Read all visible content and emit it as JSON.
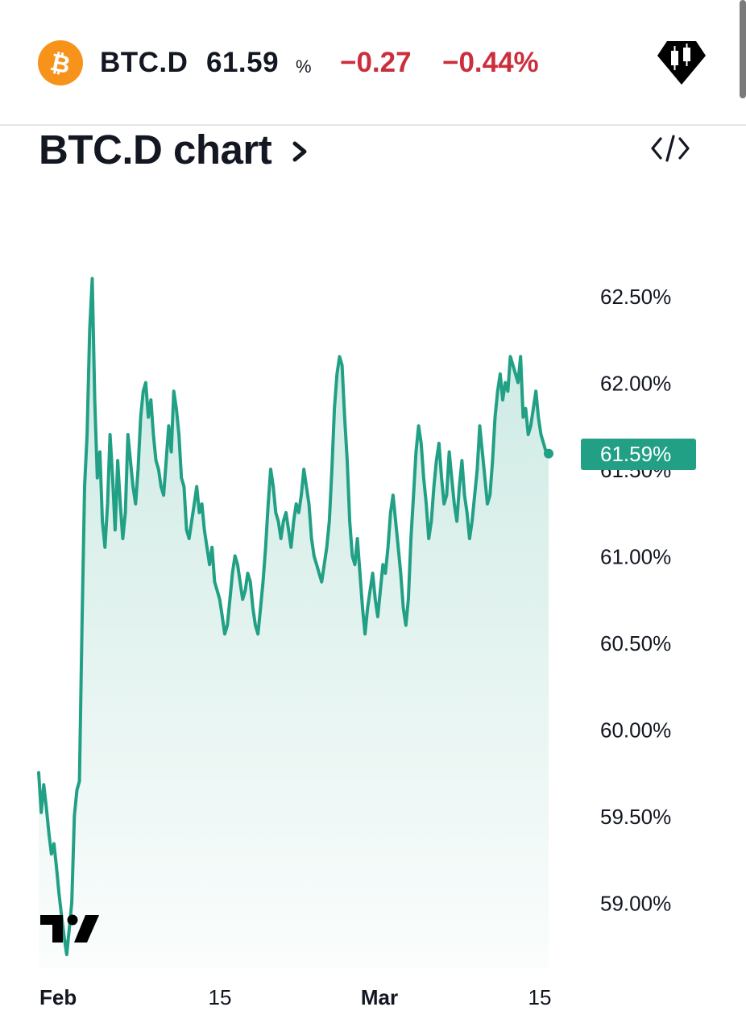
{
  "header": {
    "symbol": "BTC.D",
    "price": "61.59",
    "price_unit": "%",
    "change": "−0.27",
    "change_percent": "−0.44%",
    "icons": {
      "coin": "bitcoin-icon",
      "pro": "candlestick-badge-icon"
    }
  },
  "title": {
    "text": "BTC.D chart",
    "chevron": "chevron-right-icon",
    "embed": "code-embed-icon"
  },
  "colors": {
    "line": "#22a085",
    "fill": "#22a085",
    "negative": "#cc2f3c",
    "brand": "#f7931a",
    "text": "#131722"
  },
  "chart_data": {
    "type": "area",
    "series": [
      {
        "values": [
          59.75,
          59.52,
          59.68,
          59.55,
          59.4,
          59.28,
          59.34,
          59.2,
          59.05,
          58.92,
          58.8,
          58.7,
          58.85,
          59.0,
          59.5,
          59.65,
          59.7,
          60.6,
          61.4,
          61.7,
          62.3,
          62.6,
          61.9,
          61.45,
          61.6,
          61.2,
          61.05,
          61.3,
          61.7,
          61.45,
          61.15,
          61.55,
          61.3,
          61.1,
          61.25,
          61.7,
          61.55,
          61.4,
          61.3,
          61.5,
          61.8,
          61.95,
          62.0,
          61.8,
          61.9,
          61.7,
          61.55,
          61.5,
          61.4,
          61.35,
          61.55,
          61.75,
          61.6,
          61.95,
          61.85,
          61.7,
          61.45,
          61.4,
          61.15,
          61.1,
          61.2,
          61.3,
          61.4,
          61.25,
          61.3,
          61.15,
          61.05,
          60.95,
          61.05,
          60.85,
          60.8,
          60.75,
          60.65,
          60.55,
          60.6,
          60.75,
          60.9,
          61.0,
          60.95,
          60.85,
          60.75,
          60.8,
          60.9,
          60.85,
          60.7,
          60.6,
          60.55,
          60.7,
          60.85,
          61.05,
          61.3,
          61.5,
          61.4,
          61.25,
          61.2,
          61.1,
          61.2,
          61.25,
          61.15,
          61.05,
          61.2,
          61.3,
          61.25,
          61.35,
          61.5,
          61.4,
          61.3,
          61.1,
          61.0,
          60.95,
          60.9,
          60.85,
          60.95,
          61.05,
          61.2,
          61.5,
          61.85,
          62.05,
          62.15,
          62.1,
          61.8,
          61.55,
          61.2,
          61.0,
          60.95,
          61.1,
          60.9,
          60.7,
          60.55,
          60.7,
          60.8,
          60.9,
          60.75,
          60.65,
          60.8,
          60.95,
          60.9,
          61.05,
          61.25,
          61.35,
          61.2,
          61.05,
          60.9,
          60.7,
          60.6,
          60.75,
          61.1,
          61.35,
          61.6,
          61.75,
          61.65,
          61.45,
          61.3,
          61.1,
          61.2,
          61.4,
          61.55,
          61.65,
          61.45,
          61.3,
          61.35,
          61.6,
          61.45,
          61.3,
          61.2,
          61.4,
          61.55,
          61.35,
          61.25,
          61.1,
          61.2,
          61.35,
          61.5,
          61.75,
          61.6,
          61.45,
          61.3,
          61.35,
          61.55,
          61.8,
          61.95,
          62.05,
          61.9,
          62.0,
          61.95,
          62.15,
          62.1,
          62.05,
          62.0,
          62.15,
          61.8,
          61.85,
          61.7,
          61.75,
          61.85,
          61.95,
          61.8,
          61.7,
          61.65,
          61.6,
          61.59
        ]
      }
    ],
    "x_ticks": [
      "Feb",
      "15",
      "Mar",
      "15"
    ],
    "y_ticks": [
      "62.50%",
      "62.00%",
      "61.50%",
      "61.00%",
      "60.50%",
      "60.00%",
      "59.50%",
      "59.00%"
    ],
    "last_value_label": "61.59%",
    "y_range": [
      58.75,
      62.75
    ],
    "grid": false,
    "axis_side": "right",
    "logo": "TradingView"
  }
}
